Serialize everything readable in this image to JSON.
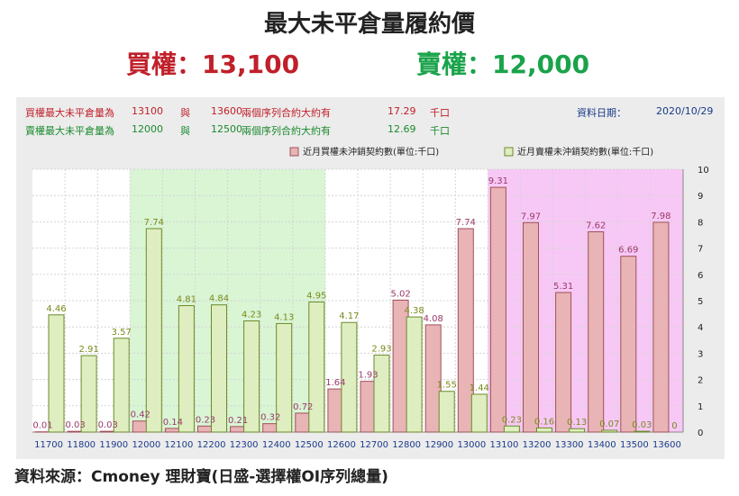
{
  "title": "最大未平倉量履約價",
  "call_headline": "買權：13,100",
  "put_headline": "賣權：12,000",
  "info": {
    "call": {
      "label": "買權最大未平倉量為",
      "strike_a": "13100",
      "conj": "與",
      "strike_b": "13600",
      "desc": "兩個序列合約大約有",
      "value": "17.29",
      "unit": "千口"
    },
    "put": {
      "label": "賣權最大未平倉量為",
      "strike_a": "12000",
      "conj": "與",
      "strike_b": "12500",
      "desc": "兩個序列合約大約有",
      "value": "12.69",
      "unit": "千口"
    },
    "date_label": "資料日期：",
    "date": "2020/10/29"
  },
  "source": "資料來源：Cmoney 理財寶(日盛-選擇權OI序列總量)",
  "chart_data": {
    "type": "bar",
    "categories": [
      "11700",
      "11800",
      "11900",
      "12000",
      "12100",
      "12200",
      "12300",
      "12400",
      "12500",
      "12600",
      "12700",
      "12800",
      "12900",
      "13000",
      "13100",
      "13200",
      "13300",
      "13400",
      "13500",
      "13600"
    ],
    "series": [
      {
        "name": "近月買權未沖銷契約數(單位:千口)",
        "values": [
          0.01,
          0.03,
          0.03,
          0.42,
          0.14,
          0.23,
          0.21,
          0.32,
          0.72,
          1.64,
          1.93,
          5.02,
          4.08,
          7.74,
          9.31,
          7.97,
          5.31,
          7.62,
          6.69,
          7.98
        ]
      },
      {
        "name": "近月賣權未沖銷契約數(單位:千口)",
        "values": [
          4.46,
          2.91,
          3.57,
          7.74,
          4.81,
          4.84,
          4.23,
          4.13,
          4.95,
          4.17,
          2.93,
          4.38,
          1.55,
          1.44,
          0.23,
          0.16,
          0.13,
          0.07,
          0.03,
          0
        ]
      }
    ],
    "ylim": [
      0,
      10
    ],
    "yticks": [
      0,
      1,
      2,
      3,
      4,
      5,
      6,
      7,
      8,
      9,
      10
    ],
    "grid": true,
    "legend_position": "top-right",
    "highlight_ranges": [
      {
        "from": "12000",
        "to": "12500",
        "color": "#d9f5d4"
      },
      {
        "from": "13100",
        "to": "13600",
        "color": "#f7c8f5"
      }
    ],
    "colors": {
      "call_fill": "#e8b4b6",
      "call_stroke": "#a0505a",
      "call_label": "#9a3a6a",
      "put_fill": "#dfeec0",
      "put_stroke": "#6a8a2a",
      "put_label": "#7a8a1a",
      "xtick": "#1a3a8a"
    }
  }
}
